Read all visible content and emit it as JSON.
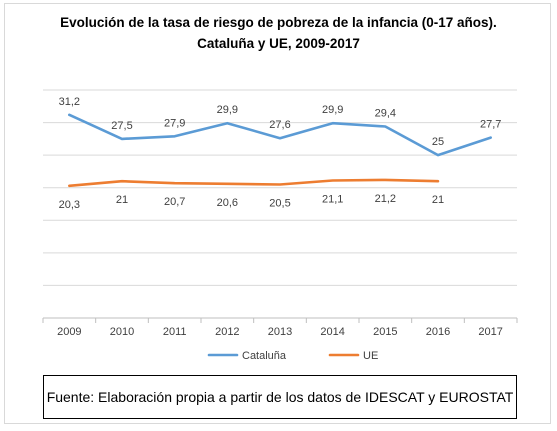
{
  "chart_data": {
    "type": "line",
    "title_line1": "Evolución de la tasa de riesgo de pobreza de la infancia (0-17 años).",
    "title_line2": "Cataluña y UE, 2009-2017",
    "x": [
      "2009",
      "2010",
      "2011",
      "2012",
      "2013",
      "2014",
      "2015",
      "2016",
      "2017"
    ],
    "ylim": [
      0,
      35
    ],
    "grid": true,
    "legend_position": "bottom",
    "series": [
      {
        "name": "Cataluña",
        "color": "#5b9bd5",
        "values": [
          31.2,
          27.5,
          27.9,
          29.9,
          27.6,
          29.9,
          29.4,
          25,
          27.7
        ],
        "labels": [
          "31,2",
          "27,5",
          "27,9",
          "29,9",
          "27,6",
          "29,9",
          "29,4",
          "25",
          "27,7"
        ]
      },
      {
        "name": "UE",
        "color": "#ed7d31",
        "values": [
          20.3,
          21,
          20.7,
          20.6,
          20.5,
          21.1,
          21.2,
          21,
          null
        ],
        "labels": [
          "20,3",
          "21",
          "20,7",
          "20,6",
          "20,5",
          "21,1",
          "21,2",
          "21",
          ""
        ]
      }
    ]
  },
  "source_note": "Fuente: Elaboración propia a partir de los datos de IDESCAT y EUROSTAT"
}
